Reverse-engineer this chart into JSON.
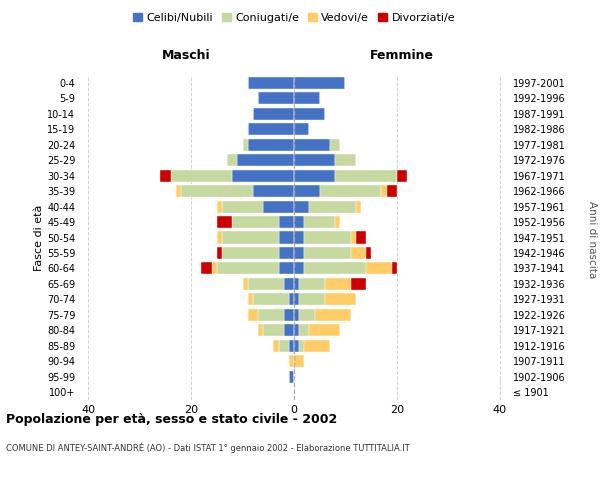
{
  "age_groups": [
    "100+",
    "95-99",
    "90-94",
    "85-89",
    "80-84",
    "75-79",
    "70-74",
    "65-69",
    "60-64",
    "55-59",
    "50-54",
    "45-49",
    "40-44",
    "35-39",
    "30-34",
    "25-29",
    "20-24",
    "15-19",
    "10-14",
    "5-9",
    "0-4"
  ],
  "birth_years": [
    "≤ 1901",
    "1902-1906",
    "1907-1911",
    "1912-1916",
    "1917-1921",
    "1922-1926",
    "1927-1931",
    "1932-1936",
    "1937-1941",
    "1942-1946",
    "1947-1951",
    "1952-1956",
    "1957-1961",
    "1962-1966",
    "1967-1971",
    "1972-1976",
    "1977-1981",
    "1982-1986",
    "1987-1991",
    "1992-1996",
    "1997-2001"
  ],
  "male": {
    "celibi": [
      0,
      1,
      0,
      1,
      2,
      2,
      1,
      2,
      3,
      3,
      3,
      3,
      6,
      8,
      12,
      11,
      9,
      9,
      8,
      7,
      9
    ],
    "coniugati": [
      0,
      0,
      0,
      2,
      4,
      5,
      7,
      7,
      12,
      11,
      11,
      9,
      8,
      14,
      12,
      2,
      1,
      0,
      0,
      0,
      0
    ],
    "vedovi": [
      0,
      0,
      1,
      1,
      1,
      2,
      1,
      1,
      1,
      0,
      1,
      0,
      1,
      1,
      0,
      0,
      0,
      0,
      0,
      0,
      0
    ],
    "divorziati": [
      0,
      0,
      0,
      0,
      0,
      0,
      0,
      0,
      2,
      1,
      0,
      3,
      0,
      0,
      2,
      0,
      0,
      0,
      0,
      0,
      0
    ]
  },
  "female": {
    "nubili": [
      0,
      0,
      0,
      1,
      1,
      1,
      1,
      1,
      2,
      2,
      2,
      2,
      3,
      5,
      8,
      8,
      7,
      3,
      6,
      5,
      10
    ],
    "coniugate": [
      0,
      0,
      0,
      1,
      2,
      3,
      5,
      5,
      12,
      9,
      9,
      6,
      9,
      12,
      12,
      4,
      2,
      0,
      0,
      0,
      0
    ],
    "vedove": [
      0,
      0,
      2,
      5,
      6,
      7,
      6,
      5,
      5,
      3,
      1,
      1,
      1,
      1,
      0,
      0,
      0,
      0,
      0,
      0,
      0
    ],
    "divorziate": [
      0,
      0,
      0,
      0,
      0,
      0,
      0,
      3,
      1,
      1,
      2,
      0,
      0,
      2,
      2,
      0,
      0,
      0,
      0,
      0,
      0
    ]
  },
  "colors": {
    "celibi_nubili": "#4472C4",
    "coniugati": "#C5D9A0",
    "vedovi": "#FFCC66",
    "divorziati": "#CC0000"
  },
  "legend_labels": [
    "Celibi/Nubili",
    "Coniugati/e",
    "Vedovi/e",
    "Divorziati/e"
  ],
  "title": "Popolazione per età, sesso e stato civile - 2002",
  "subtitle": "COMUNE DI ANTEY-SAINT-ANDRÉ (AO) - Dati ISTAT 1° gennaio 2002 - Elaborazione TUTTITALIA.IT",
  "xlabel_left": "Maschi",
  "xlabel_right": "Femmine",
  "ylabel_left": "Fasce di età",
  "ylabel_right": "Anni di nascita",
  "xlim": 42,
  "xticks": [
    -40,
    -20,
    0,
    20,
    40
  ],
  "xtick_labels": [
    "40",
    "20",
    "0",
    "20",
    "40"
  ],
  "background_color": "#ffffff",
  "grid_color": "#cccccc"
}
